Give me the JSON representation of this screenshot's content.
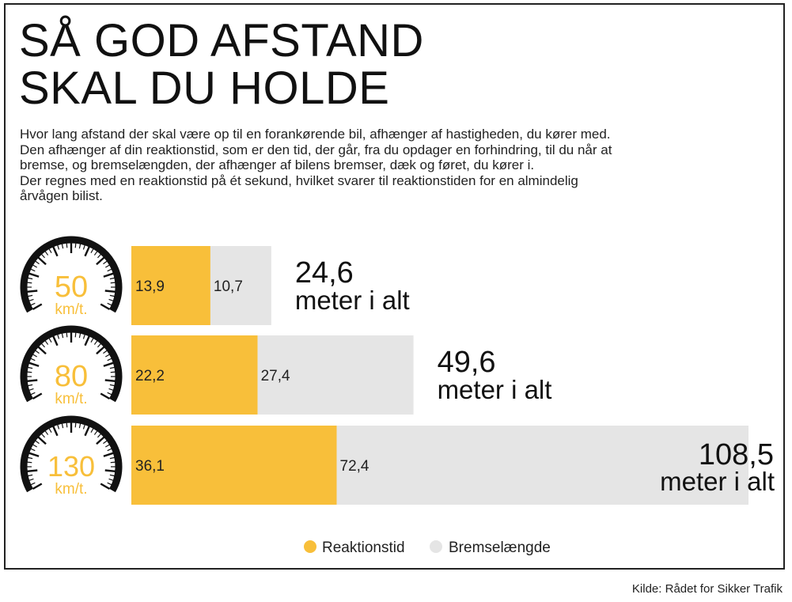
{
  "title_lines": [
    "SÅ GOD AFSTAND",
    "SKAL DU HOLDE"
  ],
  "intro_lines": [
    "Hvor lang afstand der skal være op til en forankørende bil, afhænger af hastigheden, du kører med.",
    "Den afhænger af din reaktionstid, som er den tid, der går, fra du opdager en forhindring, til du når at",
    "bremse, og bremselængden, der afhænger af bilens bremser, dæk og føret, du kører i.",
    "Der regnes med en reaktionstid på ét sekund, hvilket svarer til reaktionstiden for en almindelig",
    "årvågen bilist."
  ],
  "source": "Kilde: Rådet for Sikker Trafik",
  "colors": {
    "reaction": "#F8BF3A",
    "braking": "#E5E5E5",
    "speed_text": "#F8BF3A",
    "gauge": "#111111"
  },
  "chart_data": {
    "type": "bar",
    "orientation": "horizontal",
    "stacked": true,
    "categories": [
      "50 km/t.",
      "80 km/t.",
      "130 km/t."
    ],
    "speeds": [
      "50",
      "80",
      "130"
    ],
    "speed_unit": "km/t.",
    "series": [
      {
        "name": "Reaktionstid",
        "values": [
          13.9,
          22.2,
          36.1
        ]
      },
      {
        "name": "Bremselængde",
        "values": [
          10.7,
          27.4,
          72.4
        ]
      }
    ],
    "value_labels": [
      [
        "13,9",
        "22,2",
        "36,1"
      ],
      [
        "10,7",
        "27,4",
        "72,4"
      ]
    ],
    "totals": [
      24.6,
      49.6,
      108.5
    ],
    "total_labels": [
      "24,6",
      "49,6",
      "108,5"
    ],
    "total_suffix": "meter i alt",
    "xlim": [
      0,
      108.5
    ],
    "legend_position": "bottom",
    "grid": false
  }
}
